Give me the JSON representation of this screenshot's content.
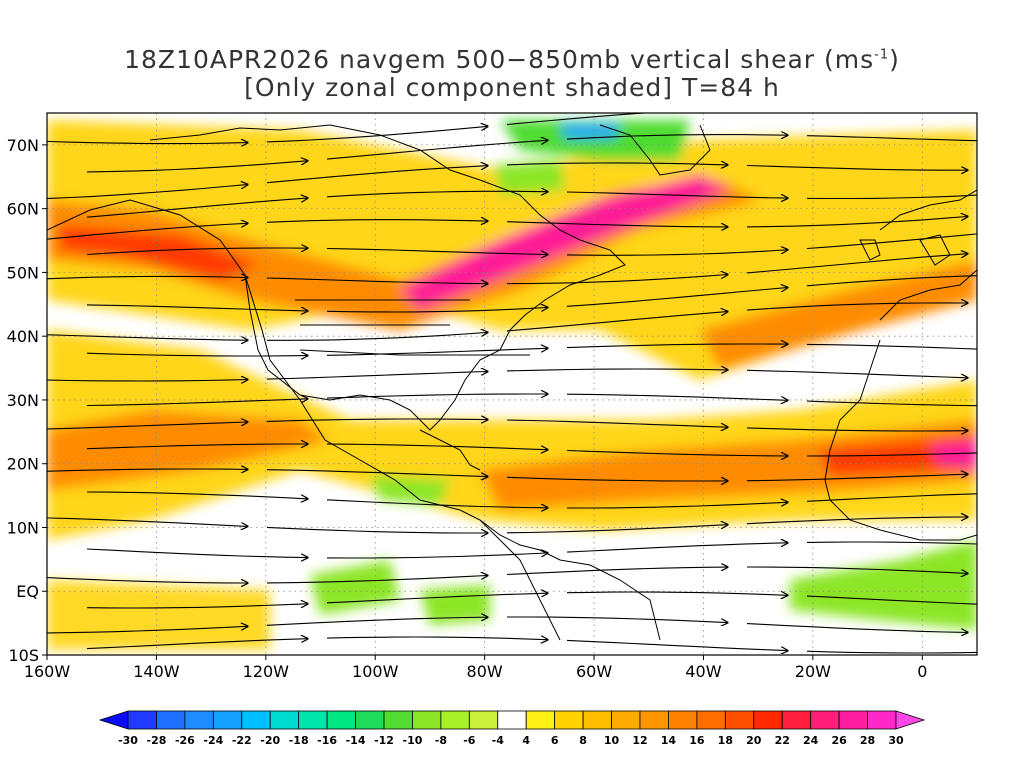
{
  "title": {
    "line1_prefix": "18Z10APR2026 navgem 500−850mb vertical shear (ms",
    "line1_sup": "-1",
    "line1_suffix": ")",
    "line2": "[Only zonal component shaded] T=84 h"
  },
  "map": {
    "lon_range": [
      -160,
      10
    ],
    "lat_range": [
      -10,
      75
    ],
    "lat_ticks": [
      {
        "value": 70,
        "label": "70N"
      },
      {
        "value": 60,
        "label": "60N"
      },
      {
        "value": 50,
        "label": "50N"
      },
      {
        "value": 40,
        "label": "40N"
      },
      {
        "value": 30,
        "label": "30N"
      },
      {
        "value": 20,
        "label": "20N"
      },
      {
        "value": 10,
        "label": "10N"
      },
      {
        "value": 0,
        "label": "EQ"
      },
      {
        "value": -10,
        "label": "10S"
      }
    ],
    "lon_ticks": [
      {
        "value": -160,
        "label": "160W"
      },
      {
        "value": -140,
        "label": "140W"
      },
      {
        "value": -120,
        "label": "120W"
      },
      {
        "value": -100,
        "label": "100W"
      },
      {
        "value": -80,
        "label": "80W"
      },
      {
        "value": -60,
        "label": "60W"
      },
      {
        "value": -40,
        "label": "40W"
      },
      {
        "value": -20,
        "label": "20W"
      },
      {
        "value": 0,
        "label": "0"
      }
    ],
    "grid": "dotted"
  },
  "colorbar": {
    "levels": [
      "-30",
      "-28",
      "-26",
      "-24",
      "-22",
      "-20",
      "-18",
      "-16",
      "-14",
      "-12",
      "-10",
      "-8",
      "-6",
      "-4",
      "4",
      "6",
      "8",
      "10",
      "12",
      "14",
      "16",
      "18",
      "20",
      "22",
      "24",
      "26",
      "28",
      "30"
    ],
    "colors": [
      "#1e3cff",
      "#1e6eff",
      "#1e8cff",
      "#14a0ff",
      "#00c0ff",
      "#00dcd2",
      "#00e6aa",
      "#00e682",
      "#1edc5a",
      "#50dc32",
      "#8ce628",
      "#aaf028",
      "#c8f03c",
      "#ffffff",
      "#fff014",
      "#ffd200",
      "#ffbe00",
      "#ffaa00",
      "#ff9600",
      "#ff8200",
      "#ff6e00",
      "#ff5000",
      "#ff2800",
      "#ff1e3c",
      "#ff1e78",
      "#ff1ea0",
      "#ff28c8"
    ],
    "under_color": "#0a0aff",
    "over_color": "#ff46e6"
  }
}
